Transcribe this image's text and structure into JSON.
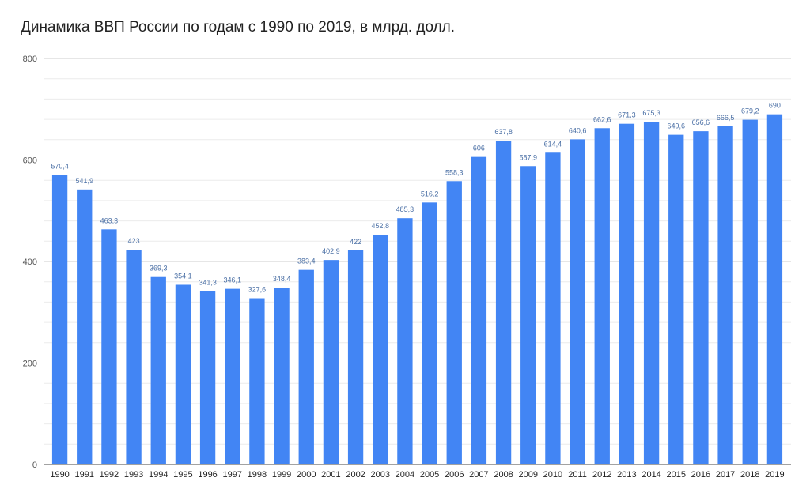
{
  "chart_data": {
    "type": "bar",
    "title": "Динамика ВВП России по годам с 1990 по 2019, в млрд. долл.",
    "xlabel": "",
    "ylabel": "",
    "ylim": [
      0,
      800
    ],
    "yticks": [
      "0",
      "200",
      "400",
      "600",
      "800"
    ],
    "grid": true,
    "bar_color": "#4285f4",
    "categories": [
      "1990",
      "1991",
      "1992",
      "1993",
      "1994",
      "1995",
      "1996",
      "1997",
      "1998",
      "1999",
      "2000",
      "2001",
      "2002",
      "2003",
      "2004",
      "2005",
      "2006",
      "2007",
      "2008",
      "2009",
      "2010",
      "2011",
      "2012",
      "2013",
      "2014",
      "2015",
      "2016",
      "2017",
      "2018",
      "2019"
    ],
    "values": [
      570.4,
      541.9,
      463.3,
      423,
      369.3,
      354.1,
      341.3,
      346.1,
      327.6,
      348.4,
      383.4,
      402.9,
      422,
      452.8,
      485.3,
      516.2,
      558.3,
      606,
      637.8,
      587.9,
      614.4,
      640.6,
      662.6,
      671.3,
      675.3,
      649.6,
      656.6,
      666.5,
      679.2,
      690
    ],
    "labels": [
      "570,4",
      "541,9",
      "463,3",
      "423",
      "369,3",
      "354,1",
      "341,3",
      "346,1",
      "327,6",
      "348,4",
      "383,4",
      "402,9",
      "422",
      "452,8",
      "485,3",
      "516,2",
      "558,3",
      "606",
      "637,8",
      "587,9",
      "614,4",
      "640,6",
      "662,6",
      "671,3",
      "675,3",
      "649,6",
      "656,6",
      "666,5",
      "679,2",
      "690"
    ]
  }
}
